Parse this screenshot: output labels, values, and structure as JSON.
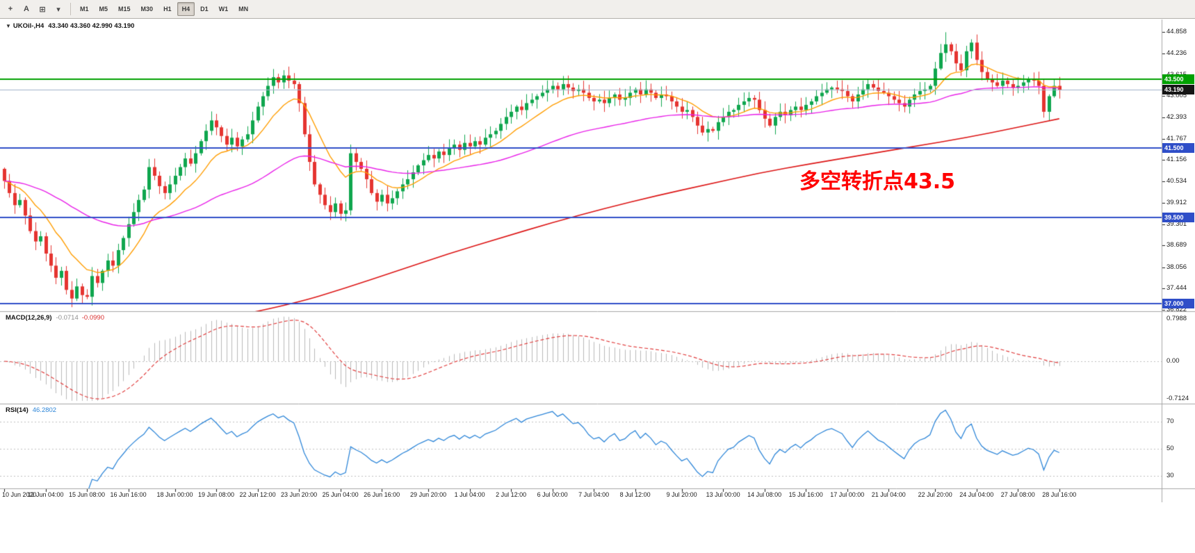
{
  "toolbar": {
    "icons": [
      {
        "name": "crosshair-icon",
        "glyph": "+"
      },
      {
        "name": "text-annotation-icon",
        "glyph": "A"
      },
      {
        "name": "shapes-icon",
        "glyph": "⊞"
      },
      {
        "name": "arrow-dropdown-icon",
        "glyph": "▾"
      }
    ],
    "timeframes": [
      "M1",
      "M5",
      "M15",
      "M30",
      "H1",
      "H4",
      "D1",
      "W1",
      "MN"
    ],
    "active_timeframe": "H4"
  },
  "chart": {
    "dropdown_glyph": "▼",
    "title": "UKOil-,H4",
    "ohlc_text": "43.340 43.360 42.990 43.190",
    "annotation": {
      "text": "多空转折点43.5",
      "color": "#ff0000"
    },
    "price_scale": [
      "44.858",
      "44.236",
      "43.615",
      "43.005",
      "42.393",
      "41.767",
      "41.156",
      "40.534",
      "39.912",
      "39.301",
      "38.689",
      "38.056",
      "37.444",
      "36.822"
    ],
    "badges": [
      {
        "text": "43.500",
        "price": 43.5,
        "bg": "#00a000"
      },
      {
        "text": "43.190",
        "price": 43.19,
        "bg": "#151515"
      },
      {
        "text": "41.500",
        "price": 41.5,
        "bg": "#2f4ec8"
      },
      {
        "text": "39.500",
        "price": 39.5,
        "bg": "#2f4ec8"
      },
      {
        "text": "37.000",
        "price": 37.0,
        "bg": "#2f4ec8"
      }
    ],
    "hlines": [
      {
        "price": 43.5,
        "color": "#00a000",
        "width": 2
      },
      {
        "price": 43.19,
        "color": "#9fb0c8",
        "width": 1
      },
      {
        "price": 41.5,
        "color": "#2f4ec8",
        "width": 2
      },
      {
        "price": 39.5,
        "color": "#2f4ec8",
        "width": 2
      },
      {
        "price": 37.0,
        "color": "#2f4ec8",
        "width": 2
      }
    ]
  },
  "macd": {
    "label": "MACD(12,26,9)",
    "value_main": "-0.0714",
    "value_signal": "-0.0990",
    "scale": [
      "0.7988",
      "0.00",
      "-0.7124"
    ]
  },
  "rsi": {
    "label": "RSI(14)",
    "value": "46.2802",
    "scale": [
      "70",
      "50",
      "30"
    ]
  },
  "time_axis": {
    "labels": [
      "10 Jun 2020",
      "12 Jun 04:00",
      "15 Jun 08:00",
      "16 Jun 16:00",
      "18 Jun 00:00",
      "19 Jun 08:00",
      "22 Jun 12:00",
      "23 Jun 20:00",
      "25 Jun 04:00",
      "26 Jun 16:00",
      "29 Jun 20:00",
      "1 Jul 04:00",
      "2 Jul 12:00",
      "6 Jul 00:00",
      "7 Jul 04:00",
      "8 Jul 12:00",
      "9 Jul 20:00",
      "13 Jul 00:00",
      "14 Jul 08:00",
      "15 Jul 16:00",
      "17 Jul 00:00",
      "21 Jul 04:00",
      "22 Jul 20:00",
      "24 Jul 04:00",
      "27 Jul 08:00",
      "28 Jul 16:00"
    ],
    "bars": [
      0,
      8,
      16,
      24,
      33,
      41,
      49,
      57,
      65,
      73,
      82,
      90,
      98,
      106,
      114,
      122,
      131,
      139,
      147,
      155,
      163,
      171,
      180,
      188,
      196,
      204
    ]
  },
  "chart_data": {
    "type": "candlestick",
    "symbol": "UKOil",
    "period": "H4",
    "y_range": [
      36.822,
      44.858
    ],
    "open_first": 40.9,
    "closes": [
      40.55,
      40.2,
      39.85,
      40,
      39.55,
      39.1,
      38.8,
      38.95,
      38.45,
      38.1,
      37.75,
      37.95,
      37.4,
      37.15,
      37.5,
      37.25,
      37.2,
      37.8,
      37.6,
      37.95,
      38.25,
      38.1,
      38.55,
      38.9,
      39.3,
      39.65,
      40,
      40.3,
      40.95,
      40.7,
      40.4,
      40.2,
      40.45,
      40.7,
      40.95,
      41.2,
      41.05,
      41.35,
      41.7,
      42,
      42.3,
      42.1,
      41.85,
      41.6,
      41.8,
      41.55,
      41.75,
      41.9,
      42.3,
      42.7,
      43,
      43.3,
      43.55,
      43.4,
      43.6,
      43.45,
      43.35,
      42.8,
      41.9,
      41.1,
      40.45,
      40.15,
      39.85,
      39.65,
      39.9,
      39.6,
      39.7,
      41.35,
      41.1,
      40.9,
      40.6,
      40.2,
      39.95,
      40.15,
      39.9,
      40.05,
      40.25,
      40.45,
      40.6,
      40.8,
      41,
      41.15,
      41.3,
      41.2,
      41.4,
      41.3,
      41.5,
      41.6,
      41.45,
      41.65,
      41.55,
      41.7,
      41.6,
      41.8,
      41.9,
      42,
      42.2,
      42.4,
      42.55,
      42.7,
      42.6,
      42.8,
      42.9,
      43,
      43.1,
      43.2,
      43.3,
      43.2,
      43.35,
      43.25,
      43.15,
      43.2,
      43.1,
      42.95,
      42.85,
      42.9,
      42.8,
      42.95,
      43.05,
      42.9,
      42.95,
      43.1,
      43.2,
      43.05,
      43.2,
      43.1,
      42.95,
      43.05,
      43,
      42.85,
      42.7,
      42.55,
      42.6,
      42.4,
      42.15,
      41.95,
      42.05,
      42,
      42.25,
      42.4,
      42.55,
      42.6,
      42.75,
      42.85,
      42.95,
      42.9,
      42.6,
      42.35,
      42.15,
      42.4,
      42.55,
      42.45,
      42.6,
      42.7,
      42.6,
      42.75,
      42.85,
      43,
      43.1,
      43.2,
      43.25,
      43.2,
      43.15,
      43,
      42.85,
      43.05,
      43.2,
      43.35,
      43.25,
      43.15,
      43.1,
      43,
      42.9,
      42.8,
      42.7,
      42.9,
      43.05,
      43.15,
      43.2,
      43.3,
      43.8,
      44.25,
      44.5,
      44.3,
      43.95,
      43.75,
      44.3,
      44.55,
      44.05,
      43.7,
      43.5,
      43.4,
      43.3,
      43.45,
      43.35,
      43.25,
      43.3,
      43.4,
      43.5,
      43.45,
      43.3,
      42.55,
      43,
      43.3,
      43.19
    ],
    "wick_overrides": {
      "13": {
        "low": 36.9
      },
      "182": {
        "high": 44.85
      },
      "201": {
        "low": 42.38
      }
    },
    "ma_fast_period": 12,
    "ma_mid_period": 55,
    "ma_long_anchors": [
      [
        47,
        36.72
      ],
      [
        56,
        37.0
      ],
      [
        66,
        37.45
      ],
      [
        76,
        37.95
      ],
      [
        86,
        38.45
      ],
      [
        96,
        38.9
      ],
      [
        106,
        39.35
      ],
      [
        116,
        39.75
      ],
      [
        126,
        40.12
      ],
      [
        136,
        40.45
      ],
      [
        146,
        40.78
      ],
      [
        156,
        41.05
      ],
      [
        166,
        41.3
      ],
      [
        176,
        41.55
      ],
      [
        186,
        41.8
      ],
      [
        196,
        42.1
      ],
      [
        204,
        42.35
      ]
    ],
    "macd": {
      "fast": 12,
      "slow": 26,
      "signal": 9
    },
    "rsi_period": 14,
    "colors": {
      "up": "#0fa64e",
      "down": "#e53430",
      "ma_fast": "#ff9d00",
      "ma_mid": "#e821e8",
      "ma_long": "#dc1414",
      "macd_hist": "#b9b9b9",
      "macd_signal": "#e03c3c",
      "rsi_line": "#2e86d8",
      "grid_dots": "#bdbdbd",
      "sep": "#a6a6a6",
      "axis_text": "#1c1c1c"
    }
  }
}
